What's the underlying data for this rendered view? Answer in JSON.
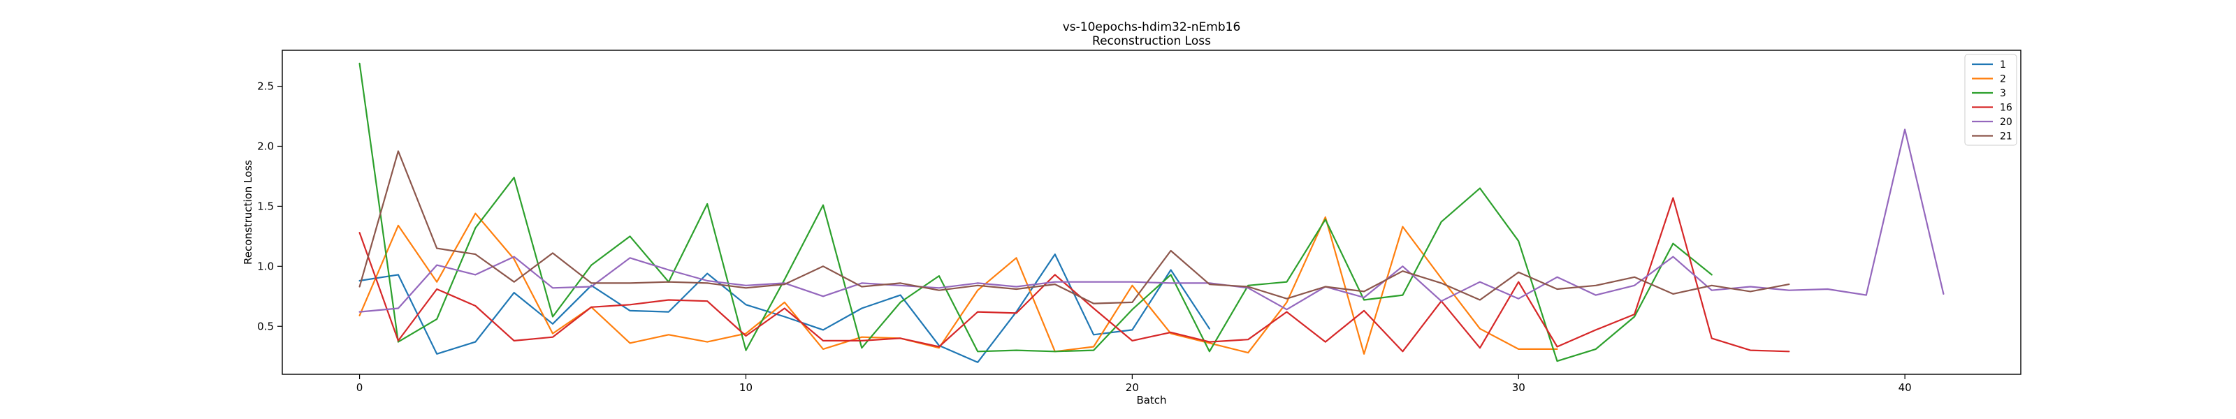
{
  "chart_data": {
    "type": "line",
    "title_line1": "vs-10epochs-hdim32-nEmb16",
    "title_line2": "Reconstruction Loss",
    "xlabel": "Batch",
    "ylabel": "Reconstruction Loss",
    "xlim": [
      -2,
      43
    ],
    "ylim": [
      0.1,
      2.8
    ],
    "xticks": [
      0,
      10,
      20,
      30,
      40
    ],
    "yticks": [
      0.5,
      1.0,
      1.5,
      2.0,
      2.5
    ],
    "ytick_labels": [
      "0.5",
      "1.0",
      "1.5",
      "2.0",
      "2.5"
    ],
    "legend_position": "top-right",
    "grid": false,
    "series": [
      {
        "name": "1",
        "color": "#1f77b4",
        "values": [
          0.88,
          0.93,
          0.27,
          0.37,
          0.78,
          0.52,
          0.84,
          0.63,
          0.62,
          0.94,
          0.68,
          0.58,
          0.47,
          0.65,
          0.76,
          0.34,
          0.2,
          0.62,
          1.1,
          0.43,
          0.47,
          0.97,
          0.48
        ]
      },
      {
        "name": "2",
        "color": "#ff7f0e",
        "values": [
          0.59,
          1.34,
          0.87,
          1.44,
          1.06,
          0.44,
          0.66,
          0.36,
          0.43,
          0.37,
          0.44,
          0.7,
          0.31,
          0.41,
          0.4,
          0.32,
          0.8,
          1.07,
          0.29,
          0.33,
          0.84,
          0.44,
          0.36,
          0.28,
          0.7,
          1.41,
          0.27,
          1.33,
          0.9,
          0.48,
          0.31,
          0.31
        ]
      },
      {
        "name": "3",
        "color": "#2ca02c",
        "values": [
          2.69,
          0.37,
          0.56,
          1.32,
          1.74,
          0.58,
          1.01,
          1.25,
          0.87,
          1.52,
          0.3,
          0.89,
          1.51,
          0.32,
          0.7,
          0.92,
          0.29,
          0.3,
          0.29,
          0.3,
          0.64,
          0.93,
          0.29,
          0.84,
          0.87,
          1.39,
          0.72,
          0.76,
          1.37,
          1.65,
          1.21,
          0.21,
          0.31,
          0.58,
          1.19,
          0.93
        ]
      },
      {
        "name": "16",
        "color": "#d62728",
        "values": [
          1.28,
          0.38,
          0.81,
          0.67,
          0.38,
          0.41,
          0.66,
          0.68,
          0.72,
          0.71,
          0.42,
          0.65,
          0.38,
          0.38,
          0.4,
          0.33,
          0.62,
          0.61,
          0.93,
          0.65,
          0.38,
          0.45,
          0.37,
          0.39,
          0.62,
          0.37,
          0.63,
          0.29,
          0.71,
          0.32,
          0.87,
          0.33,
          0.47,
          0.6,
          1.57,
          0.4,
          0.3,
          0.29
        ]
      },
      {
        "name": "20",
        "color": "#9467bd",
        "values": [
          0.62,
          0.65,
          1.01,
          0.93,
          1.08,
          0.82,
          0.83,
          1.07,
          0.97,
          0.88,
          0.84,
          0.86,
          0.75,
          0.86,
          0.84,
          0.82,
          0.86,
          0.83,
          0.87,
          0.87,
          0.87,
          0.86,
          0.86,
          0.82,
          0.64,
          0.83,
          0.74,
          1.0,
          0.71,
          0.87,
          0.73,
          0.91,
          0.76,
          0.84,
          1.08,
          0.8,
          0.83,
          0.8,
          0.81,
          0.76,
          2.14,
          0.77
        ]
      },
      {
        "name": "21",
        "color": "#8c564b",
        "values": [
          0.83,
          1.96,
          1.15,
          1.1,
          0.87,
          1.11,
          0.86,
          0.86,
          0.87,
          0.86,
          0.82,
          0.85,
          1.0,
          0.83,
          0.86,
          0.8,
          0.84,
          0.81,
          0.85,
          0.69,
          0.7,
          1.13,
          0.85,
          0.83,
          0.73,
          0.83,
          0.79,
          0.96,
          0.86,
          0.72,
          0.95,
          0.81,
          0.84,
          0.91,
          0.77,
          0.84,
          0.79,
          0.85
        ]
      }
    ]
  }
}
